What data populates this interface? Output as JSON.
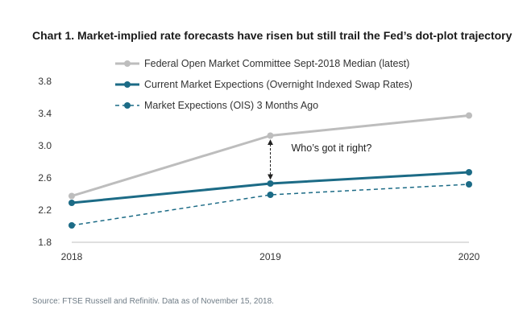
{
  "chart_data": {
    "type": "line",
    "title": "Chart 1. Market-implied rate forecasts have risen but still trail the Fed’s dot-plot trajectory",
    "x": [
      "2018",
      "2019",
      "2020"
    ],
    "ylim": [
      1.8,
      3.8
    ],
    "y_ticks": [
      "1.8",
      "2.2",
      "2.6",
      "3.0",
      "3.4",
      "3.8"
    ],
    "xlabel": "",
    "ylabel": "",
    "legend_position": "top-center",
    "grid": false,
    "series": [
      {
        "name": "Federal Open Market Committee Sept-2018 Median (latest)",
        "values": [
          2.375,
          3.125,
          3.375
        ],
        "color": "#bdbdbd",
        "style": "solid"
      },
      {
        "name": "Current Market Expections (Overnight Indexed Swap Rates)",
        "values": [
          2.29,
          2.53,
          2.67
        ],
        "color": "#1c6b86",
        "style": "solid"
      },
      {
        "name": "Market Expections (OIS) 3 Months Ago",
        "values": [
          2.01,
          2.39,
          2.52
        ],
        "color": "#1c6b86",
        "style": "dashed"
      }
    ],
    "annotation": {
      "text": "Who’s got it right?",
      "x": "2019",
      "from": 2.53,
      "to": 3.125
    }
  },
  "source": "Source: FTSE Russell and Refinitiv. Data as of November 15, 2018."
}
